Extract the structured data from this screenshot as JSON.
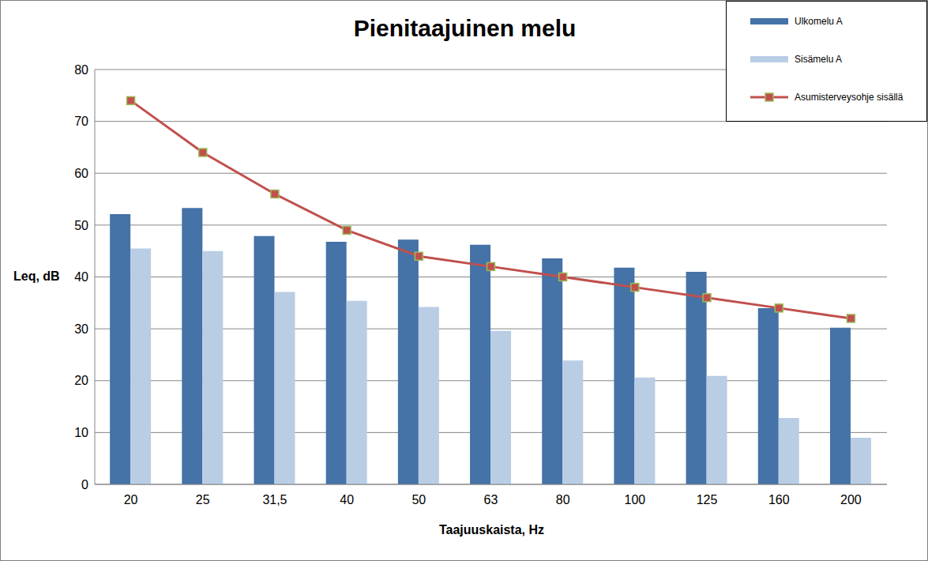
{
  "chart_data": {
    "type": "bar",
    "title": "Pienitaajuinen melu",
    "x_label": "Taajuuskaista, Hz",
    "y_label": "Leq, dB",
    "categories": [
      "20",
      "25",
      "31,5",
      "40",
      "50",
      "63",
      "80",
      "100",
      "125",
      "160",
      "200"
    ],
    "series": [
      {
        "name": "Ulkomelu A",
        "type": "bar",
        "color": "#4572a7",
        "values": [
          52.1,
          53.3,
          47.9,
          46.8,
          47.2,
          46.2,
          43.6,
          41.8,
          41.0,
          34.0,
          30.2
        ]
      },
      {
        "name": "Sisämelu A",
        "type": "bar",
        "color": "#b9cde5",
        "values": [
          45.5,
          45.0,
          37.1,
          35.4,
          34.2,
          29.6,
          23.9,
          20.6,
          20.9,
          12.8,
          9.0
        ]
      },
      {
        "name": "Asumisterveysohje sisällä",
        "type": "line",
        "color": "#c0504d",
        "marker": "square",
        "values": [
          74,
          64,
          56,
          49,
          44,
          42,
          40,
          38,
          36,
          34,
          32
        ]
      }
    ],
    "ylim": [
      0,
      80
    ],
    "yticks": [
      0,
      10,
      20,
      30,
      40,
      50,
      60,
      70,
      80
    ],
    "grid": true,
    "legend": "top right"
  }
}
